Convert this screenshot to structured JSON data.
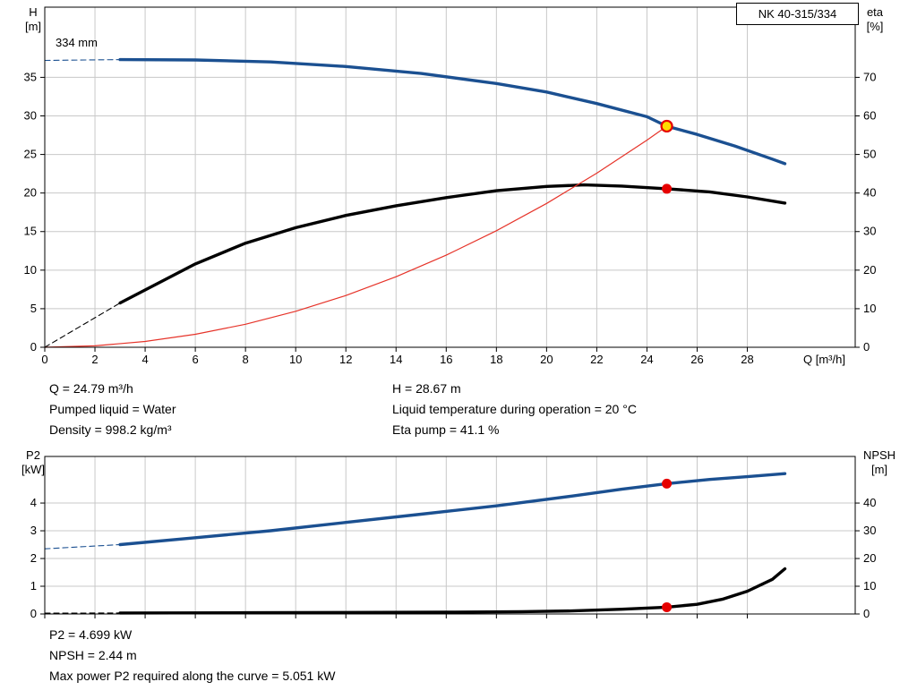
{
  "title_box": "NK 40-315/334",
  "colors": {
    "grid": "#c8c8c8",
    "axis": "#000000",
    "curve_blue": "#1b5091",
    "curve_black": "#000000",
    "curve_red": "#e63329",
    "marker_red": "#e60000",
    "marker_yellow": "#ffdc00"
  },
  "chart_data": [
    {
      "name": "hq-eta-chart",
      "type": "line",
      "title": "NK 40-315/334",
      "impeller_label": "334 mm",
      "x_axis": {
        "label": "Q [m³/h]",
        "min": 0,
        "max": 32.3,
        "ticks": [
          0,
          2,
          4,
          6,
          8,
          10,
          12,
          14,
          16,
          18,
          20,
          22,
          24,
          26,
          28
        ],
        "show_tick_labels": true
      },
      "left_axis": {
        "name": "H",
        "unit": "[m]",
        "min": 0,
        "max": 44.1,
        "ticks": [
          0,
          5,
          10,
          15,
          20,
          25,
          30,
          35
        ]
      },
      "right_axis": {
        "name": "eta",
        "unit": "[%]",
        "min": 0,
        "max": 88.2,
        "ticks": [
          0,
          10,
          20,
          30,
          40,
          50,
          60,
          70
        ]
      },
      "series": [
        {
          "name": "h-curve-dashed",
          "axis": "left",
          "color": "#1b5091",
          "width": 1.1,
          "dashed": true,
          "points": [
            [
              0,
              37.2
            ],
            [
              3,
              37.3
            ]
          ]
        },
        {
          "name": "h-curve",
          "axis": "left",
          "color": "#1b5091",
          "width": 3.4,
          "points": [
            [
              3,
              37.3
            ],
            [
              6,
              37.25
            ],
            [
              9,
              37.0
            ],
            [
              12,
              36.4
            ],
            [
              15,
              35.5
            ],
            [
              18,
              34.2
            ],
            [
              20,
              33.1
            ],
            [
              22,
              31.6
            ],
            [
              24,
              29.9
            ],
            [
              24.79,
              28.67
            ],
            [
              26,
              27.6
            ],
            [
              27.5,
              26.1
            ],
            [
              29,
              24.4
            ],
            [
              29.5,
              23.8
            ]
          ]
        },
        {
          "name": "eta-curve-dashed",
          "axis": "right",
          "color": "#000000",
          "width": 1.1,
          "dashed": true,
          "points": [
            [
              0,
              0
            ],
            [
              3,
              11.5
            ]
          ]
        },
        {
          "name": "eta-curve",
          "axis": "right",
          "color": "#000000",
          "width": 3.4,
          "points": [
            [
              3,
              11.5
            ],
            [
              6,
              21.6
            ],
            [
              8,
              27.0
            ],
            [
              10,
              31.0
            ],
            [
              12,
              34.2
            ],
            [
              14,
              36.7
            ],
            [
              16,
              38.8
            ],
            [
              18,
              40.6
            ],
            [
              20,
              41.7
            ],
            [
              21.5,
              42.1
            ],
            [
              23,
              41.8
            ],
            [
              24.79,
              41.1
            ],
            [
              26.5,
              40.3
            ],
            [
              28,
              39.0
            ],
            [
              29.5,
              37.4
            ]
          ]
        },
        {
          "name": "duty-parabola",
          "axis": "left",
          "color": "#e63329",
          "width": 1.2,
          "points": [
            [
              0,
              0
            ],
            [
              2,
              0.19
            ],
            [
              4,
              0.75
            ],
            [
              6,
              1.68
            ],
            [
              8,
              2.98
            ],
            [
              10,
              4.66
            ],
            [
              12,
              6.71
            ],
            [
              14,
              9.14
            ],
            [
              16,
              11.94
            ],
            [
              18,
              15.11
            ],
            [
              20,
              18.65
            ],
            [
              22,
              22.57
            ],
            [
              24,
              26.86
            ],
            [
              24.79,
              28.67
            ]
          ]
        }
      ],
      "markers": [
        {
          "name": "duty-point",
          "axis": "left",
          "x": 24.79,
          "y": 28.67,
          "r": 6,
          "fill": "#ffdc00",
          "stroke": "#e60000",
          "stroke_width": 2.2
        },
        {
          "name": "eta-point",
          "axis": "right",
          "x": 24.79,
          "y": 41.1,
          "r": 5.5,
          "fill": "#e60000"
        }
      ]
    },
    {
      "name": "p2-npsh-chart",
      "type": "line",
      "title": "",
      "x_axis": {
        "label": "",
        "min": 0,
        "max": 32.3,
        "ticks": [
          0,
          2,
          4,
          6,
          8,
          10,
          12,
          14,
          16,
          18,
          20,
          22,
          24,
          26,
          28
        ],
        "show_tick_labels": false
      },
      "left_axis": {
        "name": "P2",
        "unit": "[kW]",
        "min": 0,
        "max": 5.68,
        "ticks": [
          0,
          1,
          2,
          3,
          4
        ]
      },
      "right_axis": {
        "name": "NPSH",
        "unit": "[m]",
        "min": 0,
        "max": 56.8,
        "ticks": [
          0,
          10,
          20,
          30,
          40
        ]
      },
      "series": [
        {
          "name": "p2-curve-dashed",
          "axis": "left",
          "color": "#1b5091",
          "width": 1.1,
          "dashed": true,
          "points": [
            [
              0,
              2.35
            ],
            [
              3,
              2.5
            ]
          ]
        },
        {
          "name": "p2-curve",
          "axis": "left",
          "color": "#1b5091",
          "width": 3.4,
          "points": [
            [
              3,
              2.5
            ],
            [
              6,
              2.75
            ],
            [
              9,
              3.0
            ],
            [
              12,
              3.3
            ],
            [
              15,
              3.6
            ],
            [
              18,
              3.9
            ],
            [
              21,
              4.25
            ],
            [
              23,
              4.5
            ],
            [
              24.79,
              4.699
            ],
            [
              26.5,
              4.85
            ],
            [
              28,
              4.95
            ],
            [
              29.5,
              5.06
            ]
          ]
        },
        {
          "name": "npsh-curve-dashed",
          "axis": "right",
          "color": "#000000",
          "width": 1.1,
          "dashed": true,
          "points": [
            [
              0,
              0.3
            ],
            [
              3,
              0.35
            ]
          ]
        },
        {
          "name": "npsh-curve",
          "axis": "right",
          "color": "#000000",
          "width": 3.4,
          "points": [
            [
              3,
              0.35
            ],
            [
              8,
              0.45
            ],
            [
              12,
              0.55
            ],
            [
              16,
              0.65
            ],
            [
              19,
              0.85
            ],
            [
              21,
              1.1
            ],
            [
              23,
              1.7
            ],
            [
              24.79,
              2.44
            ],
            [
              26,
              3.5
            ],
            [
              27,
              5.3
            ],
            [
              28,
              8.2
            ],
            [
              29,
              12.5
            ],
            [
              29.5,
              16.3
            ]
          ]
        }
      ],
      "markers": [
        {
          "name": "p2-point",
          "axis": "left",
          "x": 24.79,
          "y": 4.699,
          "r": 5.5,
          "fill": "#e60000"
        },
        {
          "name": "npsh-point",
          "axis": "right",
          "x": 24.79,
          "y": 2.44,
          "r": 5.5,
          "fill": "#e60000"
        }
      ]
    }
  ],
  "operating_info": {
    "left": [
      "Q = 24.79 m³/h",
      "Pumped liquid = Water",
      "Density = 998.2 kg/m³"
    ],
    "right": [
      "H = 28.67 m",
      "Liquid temperature during operation = 20 °C",
      "Eta pump = 41.1 %"
    ]
  },
  "power_info": [
    "P2 = 4.699 kW",
    "NPSH = 2.44 m",
    "Max power P2 required along the curve = 5.051 kW"
  ]
}
